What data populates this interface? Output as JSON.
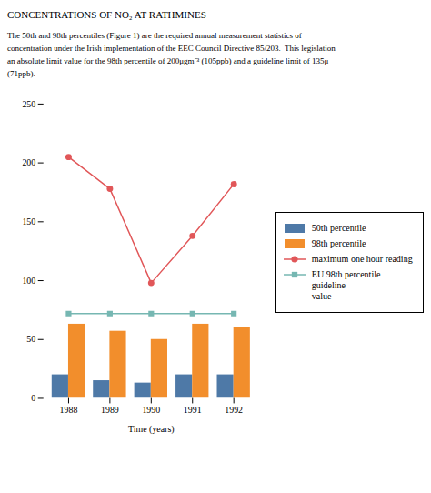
{
  "chart_data": {
    "type": "bar",
    "title": "CONCENTRATIONS OF NO₂ AT RATHMINES",
    "annotations": [
      "The 50th and 98th percentiles (Figure 1) are the required annual measurement statistics of",
      "concentration under the Irish implementation of the EEC Council Directive 85/203.  This legislation",
      "an absolute limit value for the 98th percentile of 200μgm⁻³ (105ppb) and a guideline limit of 135μ",
      "(71ppb)."
    ],
    "categories": [
      "1988",
      "1989",
      "1990",
      "1991",
      "1992"
    ],
    "series": [
      {
        "name": "50th percentile",
        "type": "bar",
        "values": [
          20,
          15,
          13,
          20,
          20
        ]
      },
      {
        "name": "98th percentile",
        "type": "bar",
        "values": [
          63,
          57,
          50,
          63,
          60
        ]
      },
      {
        "name": "maximum one hour reading",
        "type": "line",
        "marker": "circle",
        "values": [
          205,
          178,
          98,
          138,
          182
        ]
      },
      {
        "name": "EU 98th percentile guideline\nvalue",
        "type": "line",
        "marker": "square",
        "values": [
          72,
          72,
          72,
          72,
          72
        ]
      }
    ],
    "xlabel": "Time (years)",
    "ylim": [
      0,
      250
    ],
    "yticks": [
      0,
      50,
      100,
      150,
      200,
      250
    ],
    "grid": false,
    "legend": "right"
  }
}
